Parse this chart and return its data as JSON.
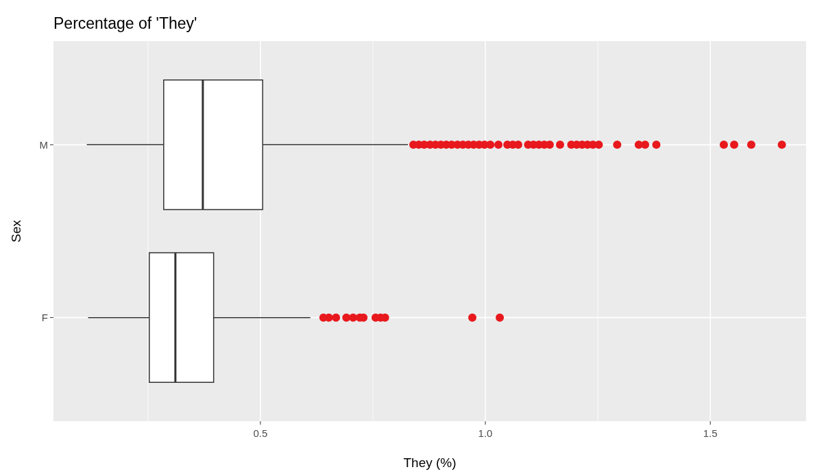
{
  "chart_data": {
    "type": "box",
    "title": "Percentage of 'They'",
    "xlabel": "They (%)",
    "ylabel": "Sex",
    "orientation": "horizontal",
    "categories": [
      "M",
      "F"
    ],
    "xlim": [
      0.04,
      1.713
    ],
    "xticks": [
      {
        "value": 0.25,
        "label": null
      },
      {
        "value": 0.5,
        "label": "0.5"
      },
      {
        "value": 0.75,
        "label": null
      },
      {
        "value": 1,
        "label": "1.0"
      },
      {
        "value": 1.25,
        "label": null
      },
      {
        "value": 1.5,
        "label": "1.5"
      }
    ],
    "grid": true,
    "series": [
      {
        "color": "#ffffff",
        "boxes": [
          {
            "low": 0.114,
            "q1": 0.285,
            "median": 0.372,
            "q3": 0.505,
            "high": 0.828,
            "outliers": [
              0.84,
              0.852,
              0.864,
              0.877,
              0.889,
              0.901,
              0.913,
              0.925,
              0.938,
              0.95,
              0.962,
              0.974,
              0.986,
              0.998,
              1.011,
              1.029,
              1.049,
              1.061,
              1.073,
              1.095,
              1.107,
              1.119,
              1.131,
              1.143,
              1.166,
              1.191,
              1.203,
              1.215,
              1.227,
              1.239,
              1.252,
              1.293,
              1.341,
              1.355,
              1.38,
              1.53,
              1.553,
              1.591,
              1.659
            ]
          },
          {
            "low": 0.117,
            "q1": 0.253,
            "median": 0.311,
            "q3": 0.396,
            "high": 0.611,
            "outliers": [
              0.64,
              0.652,
              0.668,
              0.691,
              0.706,
              0.721,
              0.729,
              0.756,
              0.767,
              0.777,
              0.971,
              1.032
            ]
          }
        ]
      }
    ]
  }
}
